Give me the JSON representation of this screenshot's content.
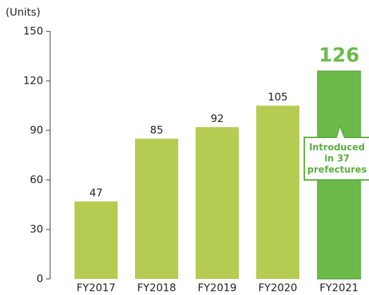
{
  "chart_data": {
    "type": "bar",
    "axis_label": "(Units)",
    "categories": [
      "FY2017",
      "FY2018",
      "FY2019",
      "FY2020",
      "FY2021"
    ],
    "values": [
      47,
      85,
      92,
      105,
      126
    ],
    "colors": [
      "#b5cc52",
      "#b5cc52",
      "#b5cc52",
      "#b5cc52",
      "#6cba4a"
    ],
    "highlight_color": "#6cba4a",
    "ylim": [
      0,
      150
    ],
    "yticks": [
      0,
      30,
      60,
      90,
      120,
      150
    ],
    "annotation": [
      "Introduced",
      "in 37",
      "prefectures"
    ]
  }
}
